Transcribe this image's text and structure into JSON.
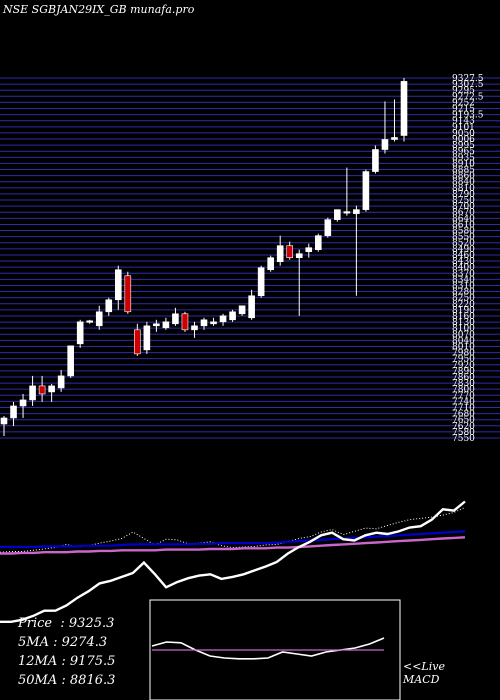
{
  "header": {
    "title": "NSE SGBJAN29IX_GB munafa.pro"
  },
  "stats": [
    {
      "label": "Price",
      "value": "9325.3"
    },
    {
      "label": "5MA",
      "value": "9274.3"
    },
    {
      "label": "12MA",
      "value": "9175.5"
    },
    {
      "label": "50MA",
      "value": "8816.3"
    }
  ],
  "macd_label": {
    "line1": "<<Live",
    "line2": "MACD"
  },
  "colors": {
    "background": "#000000",
    "up_candle": "#ffffff",
    "down_candle": "#cc0000",
    "grid": "#2d2daa",
    "ma_blue": "#0000cc",
    "ma_magenta": "#cc66cc"
  },
  "chart_data": [
    {
      "type": "candlestick",
      "title": "NSE SGBJAN29IX_GB munafa.pro",
      "ylim": [
        7540,
        9337
      ],
      "y_ticks": [
        "9327.5",
        "9307.5",
        "9295",
        "9272.5",
        "9252",
        "9215",
        "9193.5",
        "9143",
        "9101",
        "9050",
        "9006",
        "8995",
        "8965",
        "8935",
        "8910",
        "8885",
        "8860",
        "8840",
        "8810",
        "8790",
        "8750",
        "8700",
        "8670",
        "8640",
        "8610",
        "8580",
        "8550",
        "8520",
        "8490",
        "8460",
        "8430",
        "8400",
        "8370",
        "8340",
        "8310",
        "8280",
        "8250",
        "8220",
        "8190",
        "8160",
        "8130",
        "8100",
        "8070",
        "8040",
        "8010",
        "7980",
        "7950",
        "7920",
        "7890",
        "7860",
        "7830",
        "7800",
        "7770",
        "7740",
        "7710",
        "7680",
        "7650",
        "7620",
        "7580",
        "7550"
      ],
      "grid": true,
      "candles": [
        {
          "o": 7610,
          "h": 7650,
          "l": 7550,
          "c": 7640
        },
        {
          "o": 7640,
          "h": 7720,
          "l": 7600,
          "c": 7700
        },
        {
          "o": 7700,
          "h": 7760,
          "l": 7640,
          "c": 7730
        },
        {
          "o": 7730,
          "h": 7850,
          "l": 7700,
          "c": 7800
        },
        {
          "o": 7800,
          "h": 7850,
          "l": 7720,
          "c": 7760
        },
        {
          "o": 7770,
          "h": 7810,
          "l": 7720,
          "c": 7800
        },
        {
          "o": 7790,
          "h": 7880,
          "l": 7770,
          "c": 7850
        },
        {
          "o": 7850,
          "h": 8000,
          "l": 7840,
          "c": 8000
        },
        {
          "o": 8010,
          "h": 8130,
          "l": 7990,
          "c": 8120
        },
        {
          "o": 8120,
          "h": 8130,
          "l": 8110,
          "c": 8125
        },
        {
          "o": 8100,
          "h": 8200,
          "l": 8080,
          "c": 8170
        },
        {
          "o": 8170,
          "h": 8240,
          "l": 8150,
          "c": 8230
        },
        {
          "o": 8230,
          "h": 8400,
          "l": 8180,
          "c": 8380
        },
        {
          "o": 8350,
          "h": 8370,
          "l": 8160,
          "c": 8170
        },
        {
          "o": 8080,
          "h": 8110,
          "l": 7950,
          "c": 7960
        },
        {
          "o": 7980,
          "h": 8120,
          "l": 7960,
          "c": 8100
        },
        {
          "o": 8100,
          "h": 8130,
          "l": 8070,
          "c": 8110
        },
        {
          "o": 8090,
          "h": 8140,
          "l": 8080,
          "c": 8120
        },
        {
          "o": 8110,
          "h": 8190,
          "l": 8100,
          "c": 8160
        },
        {
          "o": 8160,
          "h": 8170,
          "l": 8070,
          "c": 8080
        },
        {
          "o": 8080,
          "h": 8120,
          "l": 8040,
          "c": 8100
        },
        {
          "o": 8100,
          "h": 8140,
          "l": 8080,
          "c": 8130
        },
        {
          "o": 8110,
          "h": 8140,
          "l": 8100,
          "c": 8120
        },
        {
          "o": 8120,
          "h": 8160,
          "l": 8100,
          "c": 8150
        },
        {
          "o": 8130,
          "h": 8180,
          "l": 8120,
          "c": 8170
        },
        {
          "o": 8160,
          "h": 8200,
          "l": 8150,
          "c": 8200
        },
        {
          "o": 8140,
          "h": 8280,
          "l": 8130,
          "c": 8250
        },
        {
          "o": 8250,
          "h": 8400,
          "l": 8240,
          "c": 8390
        },
        {
          "o": 8380,
          "h": 8450,
          "l": 8370,
          "c": 8440
        },
        {
          "o": 8420,
          "h": 8550,
          "l": 8400,
          "c": 8500
        },
        {
          "o": 8500,
          "h": 8520,
          "l": 8430,
          "c": 8440
        },
        {
          "o": 8440,
          "h": 8480,
          "l": 8150,
          "c": 8460
        },
        {
          "o": 8470,
          "h": 8510,
          "l": 8440,
          "c": 8490
        },
        {
          "o": 8480,
          "h": 8560,
          "l": 8470,
          "c": 8550
        },
        {
          "o": 8550,
          "h": 8640,
          "l": 8540,
          "c": 8630
        },
        {
          "o": 8630,
          "h": 8680,
          "l": 8620,
          "c": 8680
        },
        {
          "o": 8670,
          "h": 8890,
          "l": 8650,
          "c": 8670
        },
        {
          "o": 8660,
          "h": 8700,
          "l": 8250,
          "c": 8680
        },
        {
          "o": 8680,
          "h": 8880,
          "l": 8670,
          "c": 8870
        },
        {
          "o": 8870,
          "h": 9000,
          "l": 8860,
          "c": 8980
        },
        {
          "o": 8980,
          "h": 9220,
          "l": 8960,
          "c": 9030
        },
        {
          "o": 9030,
          "h": 9230,
          "l": 9020,
          "c": 9040
        },
        {
          "o": 9050,
          "h": 9337,
          "l": 9020,
          "c": 9320
        }
      ]
    },
    {
      "type": "line",
      "title": "",
      "series": [
        {
          "values": [
            0.12,
            0.13,
            0.13,
            0.15,
            0.17,
            0.19,
            0.24,
            0.2,
            0.22,
            0.26,
            0.29,
            0.33,
            0.43,
            0.33,
            0.23,
            0.32,
            0.31,
            0.25,
            0.26,
            0.28,
            0.22,
            0.19,
            0.2,
            0.21,
            0.23,
            0.24,
            0.28,
            0.33,
            0.36,
            0.43,
            0.47,
            0.39,
            0.44,
            0.49,
            0.48,
            0.53,
            0.58,
            0.62,
            0.64,
            0.66,
            0.69,
            0.73,
            0.81
          ]
        },
        {
          "values": [
            0.2,
            0.2,
            0.2,
            0.2,
            0.21,
            0.21,
            0.21,
            0.21,
            0.22,
            0.22,
            0.22,
            0.23,
            0.24,
            0.24,
            0.24,
            0.24,
            0.24,
            0.24,
            0.25,
            0.25,
            0.26,
            0.26,
            0.26,
            0.26,
            0.26,
            0.27,
            0.28,
            0.29,
            0.3,
            0.31,
            0.32,
            0.33,
            0.34,
            0.35,
            0.36,
            0.37,
            0.38,
            0.39,
            0.4,
            0.41,
            0.42,
            0.43,
            0.44
          ]
        },
        {
          "values": [
            0.1,
            0.1,
            0.11,
            0.11,
            0.12,
            0.12,
            0.12,
            0.13,
            0.13,
            0.14,
            0.14,
            0.15,
            0.15,
            0.15,
            0.15,
            0.16,
            0.16,
            0.16,
            0.16,
            0.17,
            0.17,
            0.17,
            0.18,
            0.18,
            0.18,
            0.19,
            0.19,
            0.2,
            0.21,
            0.22,
            0.23,
            0.24,
            0.25,
            0.26,
            0.27,
            0.28,
            0.29,
            0.3,
            0.31,
            0.32,
            0.33,
            0.34,
            0.35
          ]
        },
        {
          "values": [
            -0.95,
            -0.95,
            -0.92,
            -0.86,
            -0.78,
            -0.78,
            -0.7,
            -0.58,
            -0.48,
            -0.36,
            -0.32,
            -0.26,
            -0.2,
            -0.04,
            -0.22,
            -0.42,
            -0.34,
            -0.28,
            -0.24,
            -0.22,
            -0.29,
            -0.26,
            -0.22,
            -0.16,
            -0.1,
            -0.03,
            0.1,
            0.2,
            0.28,
            0.38,
            0.42,
            0.32,
            0.3,
            0.38,
            0.42,
            0.4,
            0.44,
            0.5,
            0.52,
            0.62,
            0.78,
            0.76,
            0.9
          ]
        }
      ]
    },
    {
      "type": "line",
      "title": "",
      "series": [
        {
          "values": [
            0.1,
            0.2,
            0.18,
            0.0,
            -0.15,
            -0.2,
            -0.22,
            -0.22,
            -0.2,
            -0.05,
            -0.1,
            -0.15,
            -0.05,
            0.0,
            0.05,
            0.15,
            0.3
          ]
        },
        {
          "values": [
            0,
            0,
            0,
            0,
            0,
            0,
            0,
            0,
            0,
            0,
            0,
            0,
            0,
            0,
            0,
            0,
            0
          ]
        }
      ]
    }
  ]
}
